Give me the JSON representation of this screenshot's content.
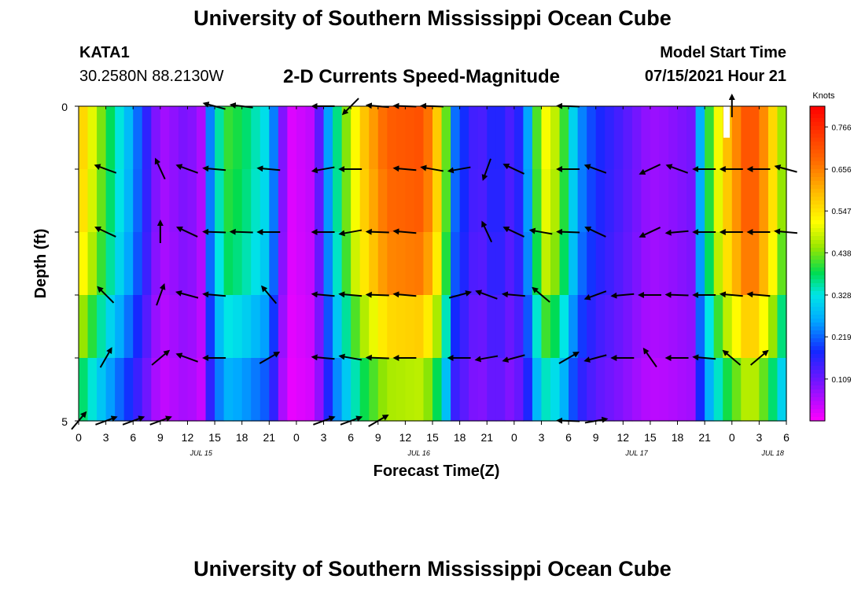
{
  "header": {
    "title": "University of Southern Mississippi Ocean Cube",
    "station": "KATA1",
    "coords": "30.2580N  88.2130W",
    "subtitle": "2-D Currents Speed-Magnitude",
    "model_label": "Model Start Time",
    "model_time": "07/15/2021 Hour 21"
  },
  "footer": {
    "title": "University of Southern Mississippi Ocean Cube"
  },
  "chart_data": {
    "type": "heatmap",
    "title": "2-D Currents Speed-Magnitude",
    "xlabel": "Forecast Time(Z)",
    "ylabel": "Depth (ft)",
    "x_tick_labels": [
      "0",
      "3",
      "6",
      "9",
      "12",
      "15",
      "18",
      "21",
      "0",
      "3",
      "6",
      "9",
      "12",
      "15",
      "18",
      "21",
      "0",
      "3",
      "6",
      "9",
      "12",
      "15",
      "18",
      "21",
      "0",
      "3",
      "6"
    ],
    "date_labels": [
      {
        "label": "JUL 15",
        "tick_index": 4.5
      },
      {
        "label": "JUL 16",
        "tick_index": 12.5
      },
      {
        "label": "JUL 17",
        "tick_index": 20.5
      },
      {
        "label": "JUL 18",
        "tick_index": 25.5
      }
    ],
    "y_ticks": [
      "0",
      "5"
    ],
    "ylim": [
      0,
      5
    ],
    "depth_rows": 5,
    "colorbar": {
      "unit": "Knots",
      "min": 0.0,
      "max": 0.82,
      "tick_labels": [
        "0.766",
        "0.656",
        "0.547",
        "0.438",
        "0.328",
        "0.219",
        "0.109"
      ],
      "tick_values": [
        0.766,
        0.656,
        0.547,
        0.438,
        0.328,
        0.219,
        0.109
      ]
    },
    "speed_profile": [
      [
        0,
        0.58
      ],
      [
        3,
        0.4
      ],
      [
        6,
        0.25
      ],
      [
        9,
        0.06
      ],
      [
        12,
        0.1
      ],
      [
        13.5,
        0.06
      ],
      [
        15,
        0.32
      ],
      [
        16.5,
        0.4
      ],
      [
        18,
        0.38
      ],
      [
        21,
        0.3
      ],
      [
        23,
        0.02
      ],
      [
        26,
        0.05
      ],
      [
        28,
        0.32
      ],
      [
        31,
        0.55
      ],
      [
        34,
        0.68
      ],
      [
        38,
        0.7
      ],
      [
        40,
        0.52
      ],
      [
        41.5,
        0.22
      ],
      [
        44,
        0.12
      ],
      [
        46,
        0.18
      ],
      [
        48,
        0.12
      ],
      [
        50,
        0.3
      ],
      [
        51,
        0.52
      ],
      [
        53,
        0.45
      ],
      [
        55,
        0.25
      ],
      [
        57,
        0.18
      ],
      [
        60,
        0.13
      ],
      [
        63,
        0.07
      ],
      [
        65,
        0.08
      ],
      [
        67.5,
        0.1
      ],
      [
        69,
        0.35
      ],
      [
        71,
        0.55
      ],
      [
        74,
        0.72
      ],
      [
        76,
        0.6
      ],
      [
        78,
        0.4
      ]
    ],
    "depth_factor": [
      1.02,
      1.0,
      0.95,
      0.82,
      0.68
    ],
    "arrows": [
      [
        0,
        0,
        null
      ],
      [
        1,
        0,
        null
      ],
      [
        2,
        0,
        null
      ],
      [
        3,
        0,
        null
      ],
      [
        4,
        0,
        null
      ],
      [
        5,
        0,
        165
      ],
      [
        6,
        0,
        173
      ],
      [
        7,
        0,
        null
      ],
      [
        8,
        0,
        null
      ],
      [
        9,
        0,
        180
      ],
      [
        10,
        0,
        225
      ],
      [
        11,
        0,
        175
      ],
      [
        12,
        0,
        178
      ],
      [
        13,
        0,
        178
      ],
      [
        14,
        0,
        null
      ],
      [
        15,
        0,
        null
      ],
      [
        16,
        0,
        null
      ],
      [
        17,
        0,
        null
      ],
      [
        18,
        0,
        178
      ],
      [
        19,
        0,
        null
      ],
      [
        20,
        0,
        null
      ],
      [
        21,
        0,
        null
      ],
      [
        22,
        0,
        null
      ],
      [
        23,
        0,
        null
      ],
      [
        24,
        0,
        90
      ],
      [
        25,
        0,
        null
      ],
      [
        26,
        0,
        null
      ],
      [
        1,
        1,
        160
      ],
      [
        3,
        1,
        115
      ],
      [
        4,
        1,
        160
      ],
      [
        5,
        1,
        175
      ],
      [
        7,
        1,
        175
      ],
      [
        9,
        1,
        190
      ],
      [
        10,
        1,
        180
      ],
      [
        12,
        1,
        175
      ],
      [
        13,
        1,
        170
      ],
      [
        14,
        1,
        190
      ],
      [
        15,
        1,
        250
      ],
      [
        16,
        1,
        155
      ],
      [
        18,
        1,
        180
      ],
      [
        19,
        1,
        160
      ],
      [
        21,
        1,
        205
      ],
      [
        22,
        1,
        160
      ],
      [
        23,
        1,
        180
      ],
      [
        24,
        1,
        180
      ],
      [
        25,
        1,
        180
      ],
      [
        26,
        1,
        165
      ],
      [
        1,
        2,
        155
      ],
      [
        3,
        2,
        90
      ],
      [
        4,
        2,
        155
      ],
      [
        5,
        2,
        178
      ],
      [
        6,
        2,
        178
      ],
      [
        7,
        2,
        180
      ],
      [
        9,
        2,
        180
      ],
      [
        10,
        2,
        190
      ],
      [
        11,
        2,
        178
      ],
      [
        12,
        2,
        175
      ],
      [
        15,
        2,
        115
      ],
      [
        16,
        2,
        155
      ],
      [
        17,
        2,
        170
      ],
      [
        18,
        2,
        178
      ],
      [
        19,
        2,
        155
      ],
      [
        21,
        2,
        205
      ],
      [
        22,
        2,
        185
      ],
      [
        23,
        2,
        180
      ],
      [
        24,
        2,
        180
      ],
      [
        25,
        2,
        180
      ],
      [
        26,
        2,
        175
      ],
      [
        1,
        3,
        135
      ],
      [
        3,
        3,
        70
      ],
      [
        4,
        3,
        165
      ],
      [
        5,
        3,
        175
      ],
      [
        7,
        3,
        130
      ],
      [
        9,
        3,
        175
      ],
      [
        10,
        3,
        175
      ],
      [
        11,
        3,
        178
      ],
      [
        12,
        3,
        175
      ],
      [
        14,
        3,
        15
      ],
      [
        15,
        3,
        160
      ],
      [
        16,
        3,
        175
      ],
      [
        17,
        3,
        140
      ],
      [
        19,
        3,
        200
      ],
      [
        20,
        3,
        185
      ],
      [
        21,
        3,
        180
      ],
      [
        22,
        3,
        178
      ],
      [
        23,
        3,
        180
      ],
      [
        24,
        3,
        175
      ],
      [
        25,
        3,
        175
      ],
      [
        1,
        4,
        60
      ],
      [
        3,
        4,
        40
      ],
      [
        4,
        4,
        160
      ],
      [
        5,
        4,
        180
      ],
      [
        7,
        4,
        30
      ],
      [
        9,
        4,
        175
      ],
      [
        10,
        4,
        170
      ],
      [
        11,
        4,
        178
      ],
      [
        12,
        4,
        180
      ],
      [
        14,
        4,
        180
      ],
      [
        15,
        4,
        190
      ],
      [
        16,
        4,
        195
      ],
      [
        18,
        4,
        30
      ],
      [
        19,
        4,
        195
      ],
      [
        20,
        4,
        180
      ],
      [
        21,
        4,
        125
      ],
      [
        22,
        4,
        180
      ],
      [
        23,
        4,
        175
      ],
      [
        24,
        4,
        140
      ],
      [
        25,
        4,
        40
      ],
      [
        0,
        5,
        50
      ],
      [
        1,
        5,
        20
      ],
      [
        2,
        5,
        20
      ],
      [
        3,
        5,
        20
      ],
      [
        4,
        5,
        null
      ],
      [
        5,
        5,
        null
      ],
      [
        6,
        5,
        null
      ],
      [
        7,
        5,
        null
      ],
      [
        8,
        5,
        null
      ],
      [
        9,
        5,
        20
      ],
      [
        10,
        5,
        20
      ],
      [
        11,
        5,
        30
      ],
      [
        12,
        5,
        null
      ],
      [
        13,
        5,
        null
      ],
      [
        14,
        5,
        null
      ],
      [
        15,
        5,
        null
      ],
      [
        16,
        5,
        null
      ],
      [
        18,
        5,
        178
      ],
      [
        19,
        5,
        10
      ],
      [
        20,
        5,
        null
      ],
      [
        21,
        5,
        null
      ]
    ]
  }
}
